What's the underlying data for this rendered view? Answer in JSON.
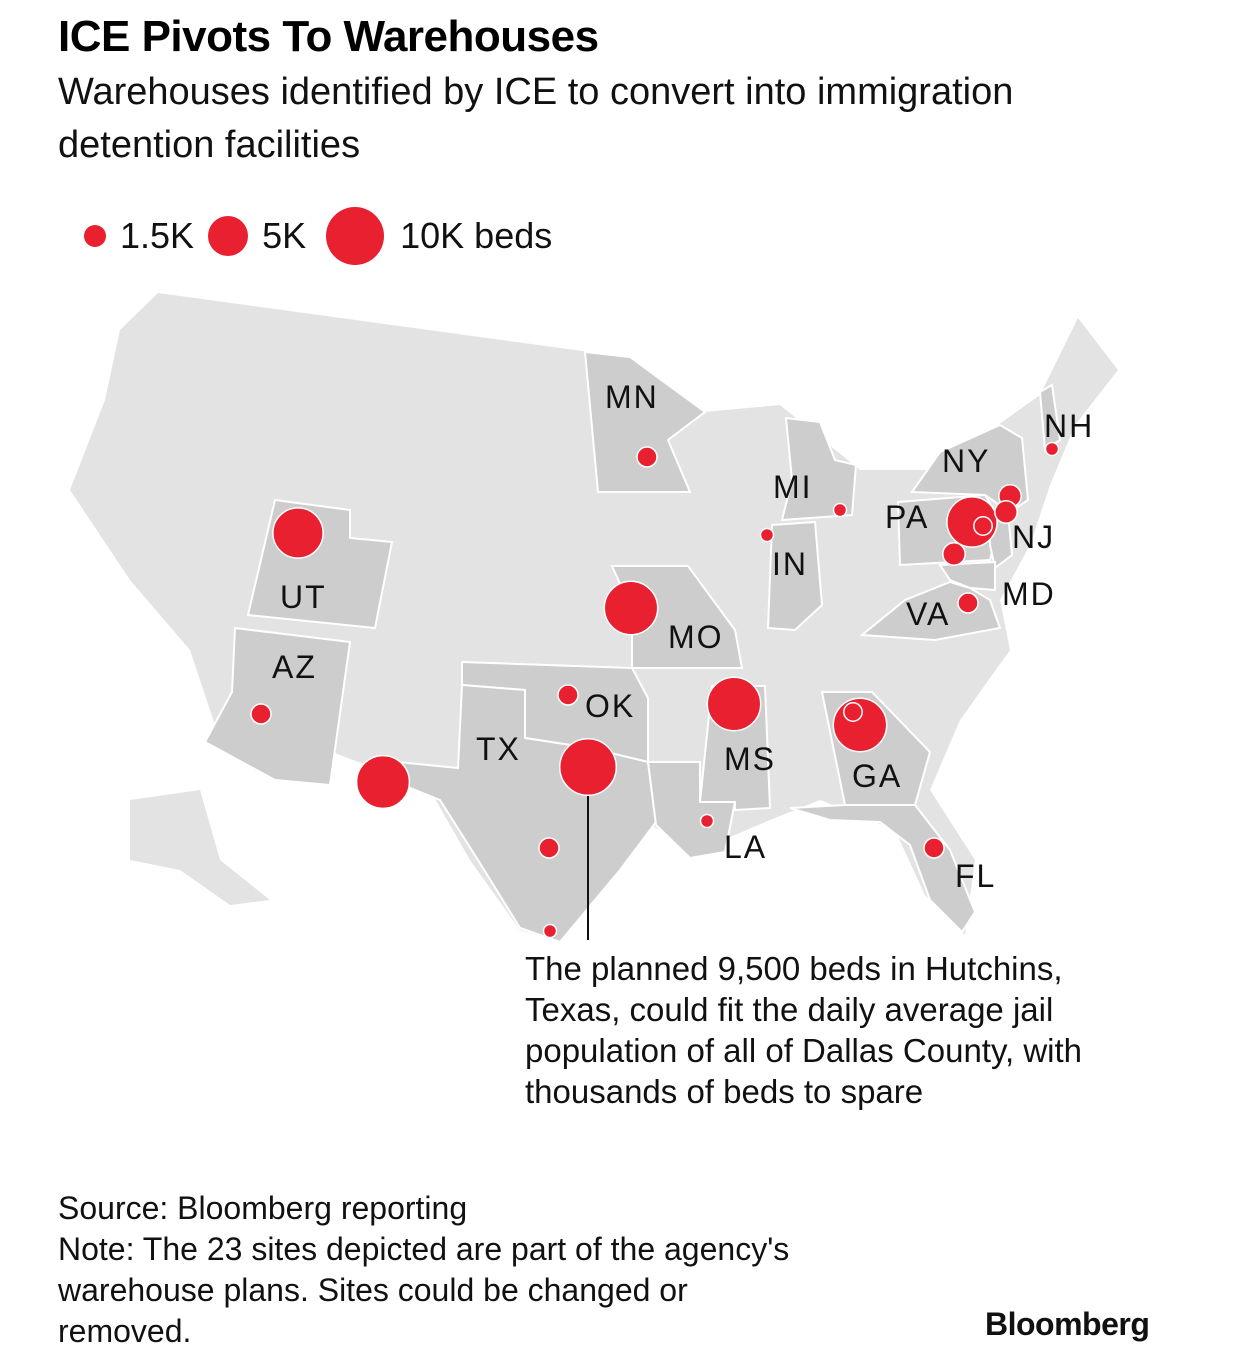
{
  "title": "ICE Pivots To Warehouses",
  "subtitle": "Warehouses identified by ICE to convert into immigration detention facilities",
  "legend": {
    "items": [
      {
        "label": "1.5K",
        "beds": 1500
      },
      {
        "label": "5K",
        "beds": 5000
      },
      {
        "label": "10K beds",
        "beds": 10000
      }
    ]
  },
  "colors": {
    "marker": "#e8202f",
    "highlight_state": "#cdcdcd",
    "base_state": "#e3e3e3",
    "border": "#ffffff"
  },
  "map": {
    "highlighted_states": [
      "MN",
      "UT",
      "AZ",
      "TX",
      "OK",
      "MO",
      "MS",
      "LA",
      "GA",
      "FL",
      "MI",
      "IN",
      "PA",
      "NY",
      "NJ",
      "MD",
      "VA",
      "NH"
    ],
    "state_labels": {
      "MN": "MN",
      "UT": "UT",
      "AZ": "AZ",
      "TX": "TX",
      "OK": "OK",
      "MO": "MO",
      "MS": "MS",
      "LA": "LA",
      "GA": "GA",
      "FL": "FL",
      "MI": "MI",
      "IN": "IN",
      "PA": "PA",
      "NY": "NY",
      "NJ": "NJ",
      "MD": "MD",
      "VA": "VA",
      "NH": "NH"
    },
    "sites": [
      {
        "state": "MN",
        "beds": 1200
      },
      {
        "state": "UT",
        "beds": 7500
      },
      {
        "state": "AZ",
        "beds": 1200
      },
      {
        "state": "TX",
        "beds": 8300
      },
      {
        "state": "OK",
        "beds": 1200
      },
      {
        "state": "MO",
        "beds": 8500
      },
      {
        "state": "TX",
        "beds": 9500
      },
      {
        "state": "TX",
        "beds": 1200
      },
      {
        "state": "TX",
        "beds": 500
      },
      {
        "state": "MS",
        "beds": 8500
      },
      {
        "state": "LA",
        "beds": 500
      },
      {
        "state": "GA",
        "beds": 8500
      },
      {
        "state": "GA",
        "beds": 1000
      },
      {
        "state": "FL",
        "beds": 1200
      },
      {
        "state": "MI",
        "beds": 500
      },
      {
        "state": "IN",
        "beds": 500
      },
      {
        "state": "PA",
        "beds": 7500
      },
      {
        "state": "NJ",
        "beds": 1500
      },
      {
        "state": "NY",
        "beds": 1500
      },
      {
        "state": "PA",
        "beds": 1500
      },
      {
        "state": "VA",
        "beds": 1200
      },
      {
        "state": "NH",
        "beds": 500
      },
      {
        "state": "PA",
        "beds": 1000
      }
    ]
  },
  "annotation": "The planned 9,500 beds in Hutchins, Texas, could fit the daily average jail population of all of Dallas County, with thousands of beds to spare",
  "source": "Source: Bloomberg reporting",
  "note": "Note: The 23 sites depicted are part of the agency's warehouse plans. Sites could be changed or removed.",
  "brand": "Bloomberg"
}
